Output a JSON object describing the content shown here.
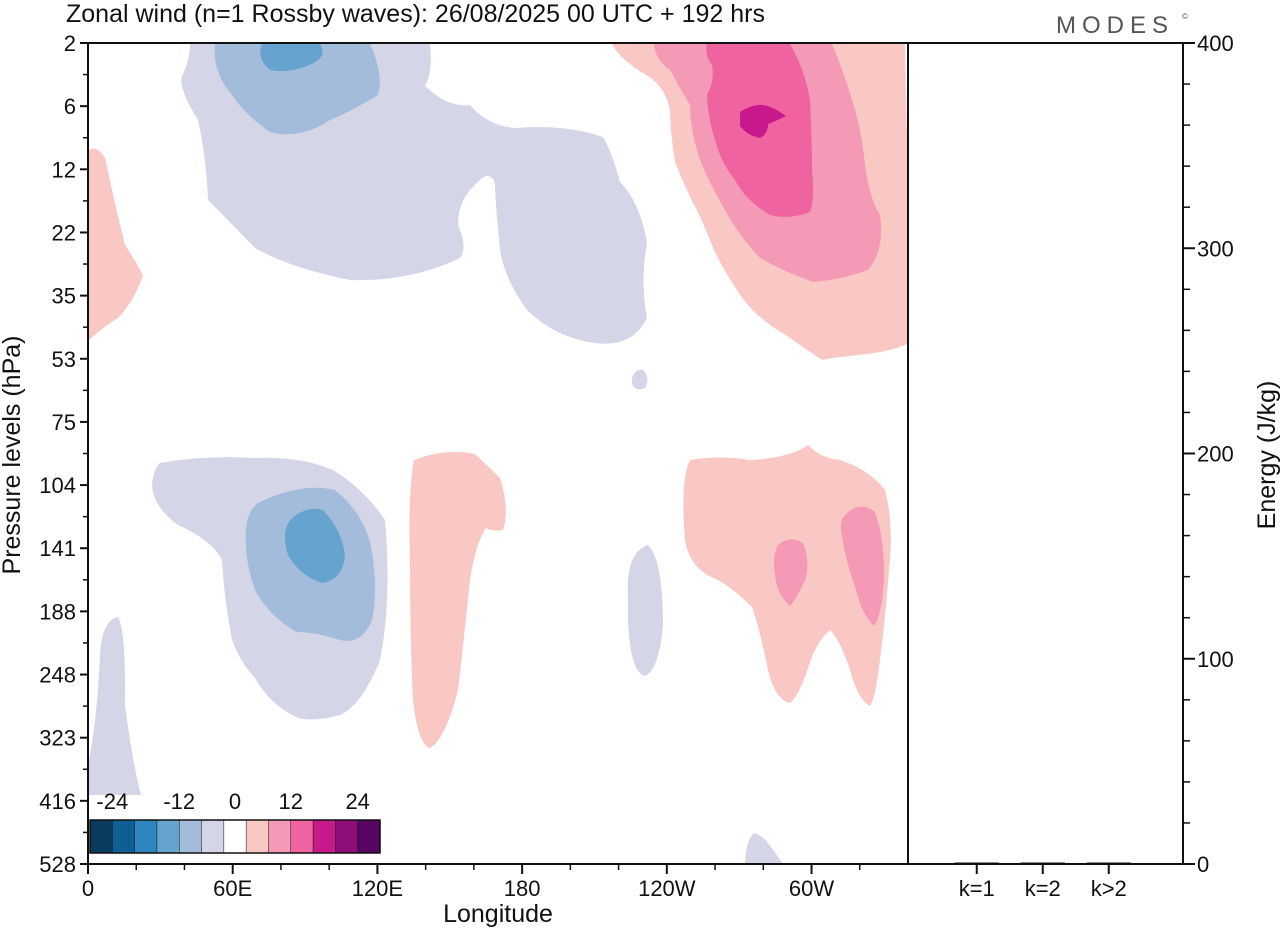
{
  "chart_data": [
    {
      "type": "heatmap",
      "title": "Zonal wind (n=1 Rossby waves):  26/08/2025  00 UTC  + 192 hrs",
      "brand": "MODES",
      "brand_mark": "©",
      "xlabel": "Longitude",
      "ylabel": "Pressure levels (hPa)",
      "x_ticks": [
        "0",
        "60E",
        "120E",
        "180",
        "120W",
        "60W"
      ],
      "x_range_deg": [
        0,
        340
      ],
      "y_ticks": [
        "2",
        "6",
        "12",
        "22",
        "35",
        "53",
        "75",
        "104",
        "141",
        "188",
        "248",
        "323",
        "416",
        "528"
      ],
      "colorbar": {
        "labels": [
          "-24",
          "-12",
          "0",
          "12",
          "24"
        ],
        "colors": [
          "#0a3a5e",
          "#0e5f95",
          "#2d86bd",
          "#66a4cf",
          "#a4bcdb",
          "#d4d6e8",
          "#ffffff",
          "#f9c8c5",
          "#f59ab6",
          "#ee63a0",
          "#c8198c",
          "#8f0d78",
          "#560660"
        ]
      },
      "regions": [
        {
          "name": "upper-east-hemisphere-easterly",
          "level": 1,
          "sign": "negative",
          "lon": [
            38,
            230
          ],
          "hPa": [
            2,
            40
          ]
        },
        {
          "name": "upper-east-hemisphere-core",
          "level": 2,
          "sign": "negative",
          "lon": [
            55,
            118
          ],
          "hPa": [
            2,
            8
          ]
        },
        {
          "name": "upper-east-hemisphere-max",
          "level": 3,
          "sign": "negative",
          "lon": [
            72,
            92
          ],
          "hPa": [
            2,
            3
          ]
        },
        {
          "name": "upper-west-hemisphere-westerly",
          "level": 1,
          "sign": "positive",
          "lon": [
            215,
            340
          ],
          "hPa": [
            2,
            53
          ]
        },
        {
          "name": "upper-west-hemisphere-core",
          "level": 2,
          "sign": "positive",
          "lon": [
            245,
            330
          ],
          "hPa": [
            2,
            35
          ]
        },
        {
          "name": "upper-west-hemisphere-inner",
          "level": 3,
          "sign": "positive",
          "lon": [
            255,
            305
          ],
          "hPa": [
            3,
            20
          ]
        },
        {
          "name": "upper-west-hemisphere-max",
          "level": 4,
          "sign": "positive",
          "lon": [
            270,
            290
          ],
          "hPa": [
            5,
            8
          ]
        },
        {
          "name": "lower-east-hemisphere-easterly",
          "level": 1,
          "sign": "negative",
          "lon": [
            27,
            128
          ],
          "hPa": [
            95,
            300
          ]
        },
        {
          "name": "lower-east-hemisphere-core",
          "level": 2,
          "sign": "negative",
          "lon": [
            66,
            118
          ],
          "hPa": [
            115,
            210
          ]
        },
        {
          "name": "lower-east-hemisphere-max",
          "level": 3,
          "sign": "negative",
          "lon": [
            80,
            108
          ],
          "hPa": [
            125,
            165
          ]
        },
        {
          "name": "central-pacific-westerly",
          "level": 1,
          "sign": "positive",
          "lon": [
            133,
            175
          ],
          "hPa": [
            95,
            390
          ]
        },
        {
          "name": "lower-west-hemisphere-westerly",
          "level": 1,
          "sign": "positive",
          "lon": [
            245,
            330
          ],
          "hPa": [
            95,
            290
          ]
        },
        {
          "name": "lower-west-hemisphere-core-a",
          "level": 2,
          "sign": "positive",
          "lon": [
            285,
            300
          ],
          "hPa": [
            130,
            190
          ]
        },
        {
          "name": "lower-west-hemisphere-core-b",
          "level": 2,
          "sign": "positive",
          "lon": [
            312,
            330
          ],
          "hPa": [
            120,
            215
          ]
        },
        {
          "name": "west-pacific-edge-westerly",
          "level": 1,
          "sign": "positive",
          "lon": [
            0,
            23
          ],
          "hPa": [
            10,
            50
          ]
        },
        {
          "name": "east-pacific-easterly",
          "level": 1,
          "sign": "negative",
          "lon": [
            225,
            240
          ],
          "hPa": [
            145,
            250
          ]
        },
        {
          "name": "africa-lower-easterly",
          "level": 1,
          "sign": "negative",
          "lon": [
            2,
            22
          ],
          "hPa": [
            180,
            528
          ]
        },
        {
          "name": "surface-easterly-patch",
          "level": 1,
          "sign": "negative",
          "lon": [
            272,
            286
          ],
          "hPa": [
            490,
            528
          ]
        },
        {
          "name": "stratosphere-easterly-blob",
          "level": 1,
          "sign": "negative",
          "lon": [
            227,
            232
          ],
          "hPa": [
            58,
            65
          ]
        }
      ]
    },
    {
      "type": "bar",
      "categories": [
        "k=1",
        "k=2",
        "k>2"
      ],
      "values": [
        0.4,
        0.2,
        0.6
      ],
      "ylabel": "Energy (J/kg)",
      "ylim": [
        0,
        400
      ],
      "y_ticks": [
        "0",
        "100",
        "200",
        "300",
        "400"
      ]
    }
  ]
}
